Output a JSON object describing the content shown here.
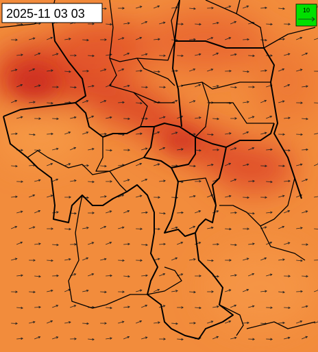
{
  "timestamp": "2025-11 03 03",
  "legend": {
    "label": "10"
  }
}
